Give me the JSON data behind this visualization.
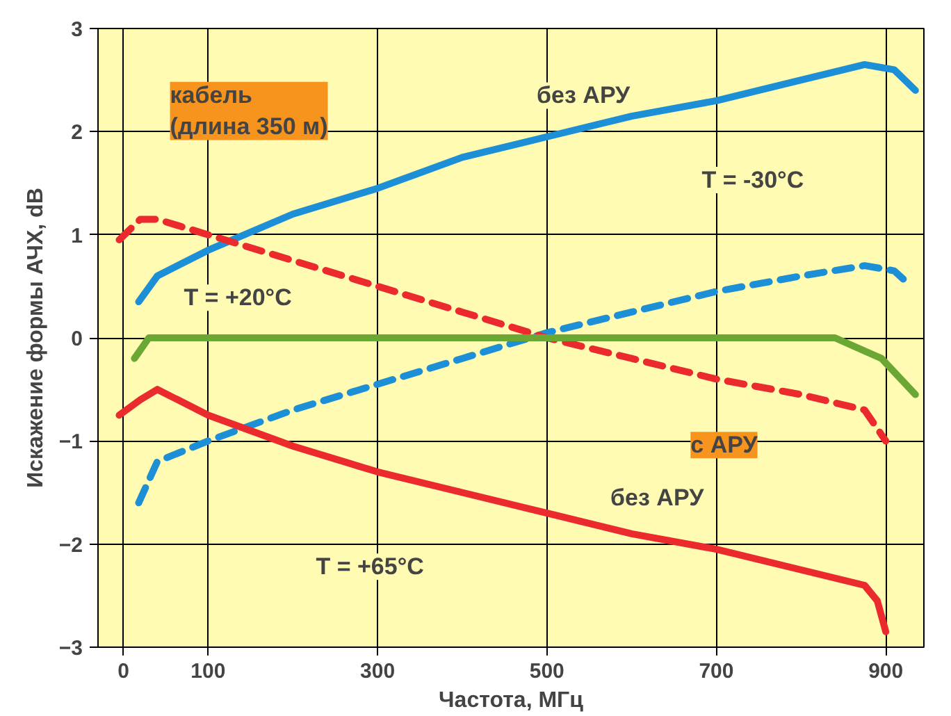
{
  "chart_data": {
    "type": "line",
    "title": "кабель\n(длина 350 м)",
    "xlabel": "Частота, МГц",
    "ylabel": "Искажение формы АЧХ, dB",
    "xlim": [
      -30,
      945
    ],
    "ylim": [
      -3,
      3
    ],
    "xticks": [
      0,
      100,
      300,
      500,
      700,
      900
    ],
    "yticks": [
      -3,
      -2,
      -1,
      0,
      1,
      2,
      3
    ],
    "grid": true,
    "marker": "none",
    "series": [
      {
        "color": "#1c8fd6",
        "line_style": "solid",
        "x": [
          18,
          40,
          100,
          200,
          300,
          400,
          500,
          600,
          700,
          800,
          875,
          910,
          935
        ],
        "values": [
          0.35,
          0.6,
          0.85,
          1.2,
          1.45,
          1.75,
          1.95,
          2.15,
          2.3,
          2.5,
          2.65,
          2.6,
          2.4
        ]
      },
      {
        "color": "#1c8fd6",
        "line_style": "dashed",
        "x": [
          18,
          40,
          100,
          200,
          300,
          400,
          500,
          600,
          700,
          800,
          875,
          910,
          930
        ],
        "values": [
          -1.6,
          -1.2,
          -1.0,
          -0.7,
          -0.45,
          -0.2,
          0.05,
          0.25,
          0.45,
          0.6,
          0.7,
          0.65,
          0.5
        ]
      },
      {
        "color": "#ea2a2c",
        "line_style": "dashed",
        "x": [
          -5,
          20,
          40,
          100,
          200,
          300,
          400,
          500,
          600,
          700,
          800,
          875,
          900
        ],
        "values": [
          0.95,
          1.15,
          1.15,
          1.0,
          0.75,
          0.5,
          0.25,
          0.0,
          -0.2,
          -0.4,
          -0.55,
          -0.7,
          -1.0
        ]
      },
      {
        "color": "#ea2a2c",
        "line_style": "solid",
        "x": [
          -5,
          20,
          40,
          100,
          200,
          300,
          400,
          500,
          600,
          700,
          800,
          875,
          890,
          900
        ],
        "values": [
          -0.75,
          -0.6,
          -0.5,
          -0.75,
          -1.05,
          -1.3,
          -1.5,
          -1.7,
          -1.9,
          -2.05,
          -2.25,
          -2.4,
          -2.55,
          -2.85
        ]
      },
      {
        "color": "#6aa833",
        "line_style": "solid",
        "x": [
          13,
          30,
          200,
          400,
          600,
          840,
          895,
          935
        ],
        "values": [
          -0.2,
          0,
          0,
          0,
          0,
          0,
          -0.2,
          -0.55
        ]
      }
    ],
    "annotations": [
      "без АРУ",
      "T = -30°C",
      "T = +20°C",
      "с АРУ",
      "без АРУ",
      "T = +65°C"
    ]
  }
}
